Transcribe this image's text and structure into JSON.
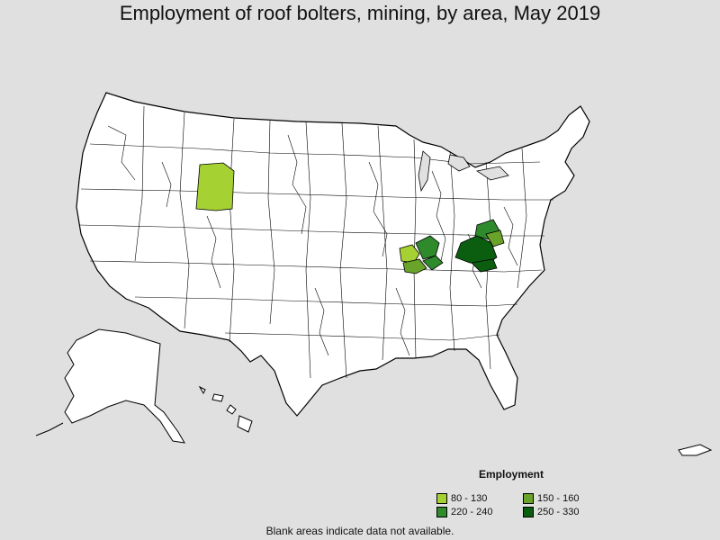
{
  "title": "Employment of roof bolters, mining, by area, May 2019",
  "legend": {
    "title": "Employment",
    "items": [
      {
        "label": "80 - 130",
        "color": "#a6d132"
      },
      {
        "label": "150 - 160",
        "color": "#6aa329"
      },
      {
        "label": "220 - 240",
        "color": "#2f8a2c"
      },
      {
        "label": "250 - 330",
        "color": "#0b5e10"
      }
    ]
  },
  "note": "Blank areas indicate data not available.",
  "colors": {
    "background": "#e0e0e0",
    "no_data": "#ffffff",
    "border": "#000000"
  }
}
